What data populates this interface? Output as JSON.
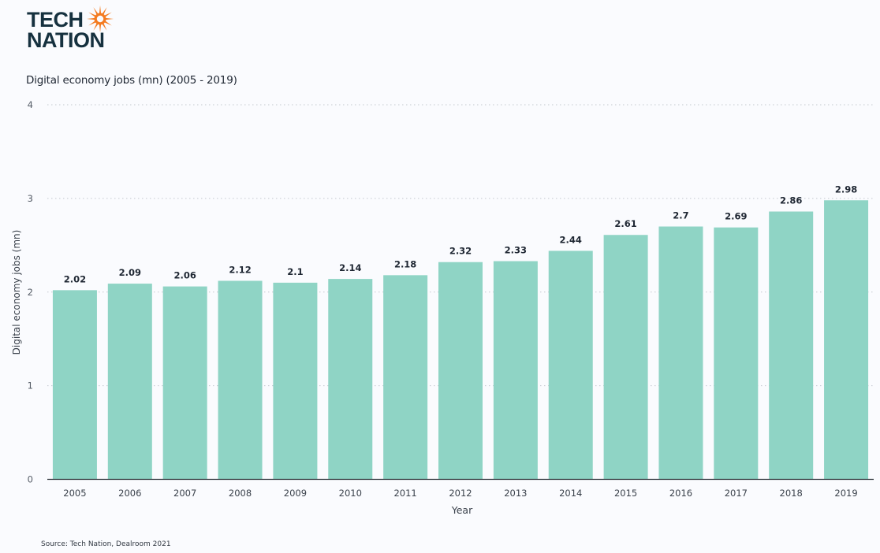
{
  "brand": {
    "logo_line1": "TECH",
    "logo_line2": "NATION",
    "accent_color": "#f47b20",
    "text_color": "#16313f"
  },
  "source_note": "Source: Tech Nation, Dealroom 2021",
  "chart_data": {
    "type": "bar",
    "title": "Digital economy jobs (mn) (2005 - 2019)",
    "xlabel": "Year",
    "ylabel": "Digital economy jobs (mn)",
    "ylim": [
      0,
      4
    ],
    "yticks": [
      "0",
      "1",
      "2",
      "3",
      "4"
    ],
    "grid": true,
    "bar_color": "#8fd4c5",
    "categories": [
      "2005",
      "2006",
      "2007",
      "2008",
      "2009",
      "2010",
      "2011",
      "2012",
      "2013",
      "2014",
      "2015",
      "2016",
      "2017",
      "2018",
      "2019"
    ],
    "values": [
      2.02,
      2.09,
      2.06,
      2.12,
      2.1,
      2.14,
      2.18,
      2.32,
      2.33,
      2.44,
      2.61,
      2.7,
      2.69,
      2.86,
      2.98
    ],
    "data_labels": [
      "2.02",
      "2.09",
      "2.06",
      "2.12",
      "2.1",
      "2.14",
      "2.18",
      "2.32",
      "2.33",
      "2.44",
      "2.61",
      "2.7",
      "2.69",
      "2.86",
      "2.98"
    ]
  }
}
